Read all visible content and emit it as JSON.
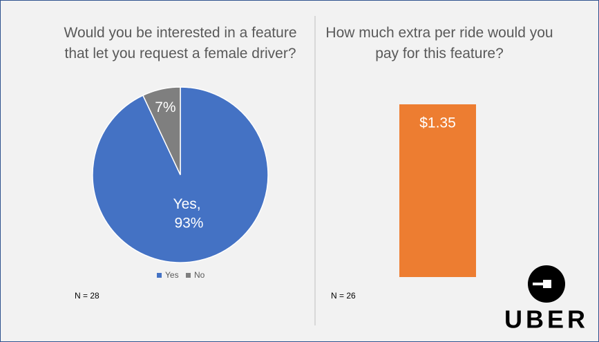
{
  "chart_data": [
    {
      "type": "pie",
      "title": "Would you be interested in a feature that let you request a female driver?",
      "categories": [
        "Yes",
        "No"
      ],
      "values": [
        93,
        7
      ],
      "value_labels": [
        "Yes, 93%",
        "7%"
      ],
      "colors": [
        "#4472c4",
        "#7f7f7f"
      ],
      "legend": "bottom",
      "note": "N = 28"
    },
    {
      "type": "bar",
      "title": "How much extra per ride would you pay for this feature?",
      "categories": [
        null
      ],
      "values": [
        1.35
      ],
      "value_labels": [
        "$1.35"
      ],
      "color": "#ed7d31",
      "note": "N = 26"
    }
  ],
  "logo": "UBER"
}
